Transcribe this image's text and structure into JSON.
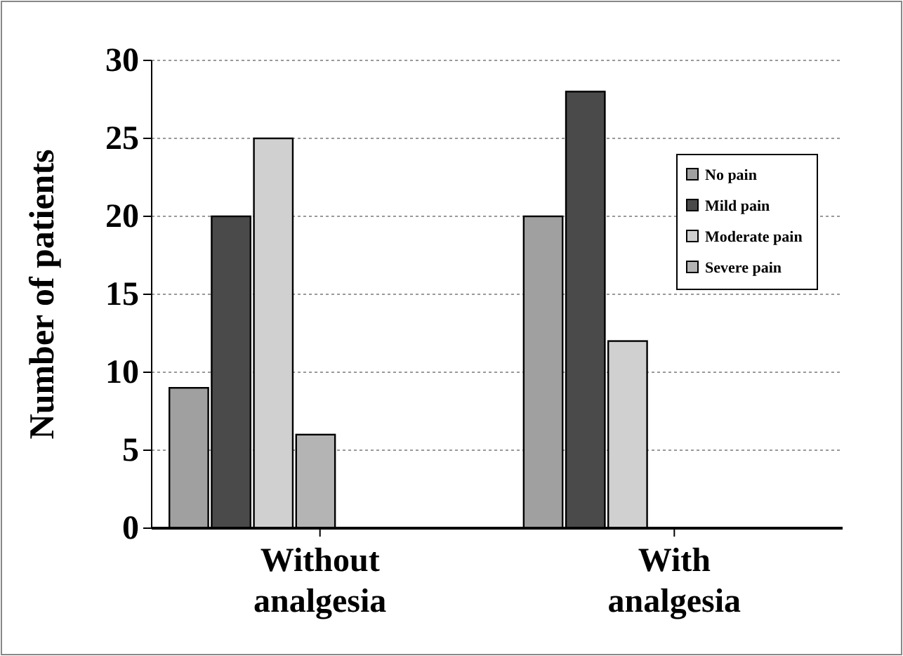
{
  "chart_data": {
    "type": "bar",
    "ylabel": "Number of patients",
    "categories": [
      "Without analgesia",
      "With analgesia"
    ],
    "series": [
      {
        "name": "No pain",
        "color": "#a0a0a0",
        "values": [
          9,
          20
        ]
      },
      {
        "name": "Mild pain",
        "color": "#4a4a4a",
        "values": [
          20,
          28
        ]
      },
      {
        "name": "Moderate pain",
        "color": "#d0d0d0",
        "values": [
          25,
          12
        ]
      },
      {
        "name": "Severe pain",
        "color": "#b4b4b4",
        "values": [
          6,
          0
        ]
      }
    ],
    "ylim": [
      0,
      30
    ],
    "yticks": [
      0,
      5,
      10,
      15,
      20,
      25,
      30
    ],
    "grid": "y",
    "legend": "top right"
  }
}
